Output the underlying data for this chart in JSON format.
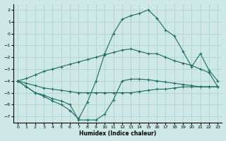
{
  "xlabel": "Humidex (Indice chaleur)",
  "xlim": [
    -0.5,
    23.5
  ],
  "ylim": [
    -7.5,
    2.5
  ],
  "yticks": [
    2,
    1,
    0,
    -1,
    -2,
    -3,
    -4,
    -5,
    -6,
    -7
  ],
  "xticks": [
    0,
    1,
    2,
    3,
    4,
    5,
    6,
    7,
    8,
    9,
    10,
    11,
    12,
    13,
    14,
    15,
    16,
    17,
    18,
    19,
    20,
    21,
    22,
    23
  ],
  "bg_color": "#cde8e5",
  "line_color": "#1e6b63",
  "grid_color": "#aacfcc",
  "line1_x": [
    0,
    1,
    2,
    3,
    4,
    5,
    6,
    7,
    8,
    9,
    10,
    11,
    12,
    13,
    14,
    15,
    16,
    17,
    18,
    19,
    20,
    21,
    22,
    23
  ],
  "line1_y": [
    -4.0,
    -3.8,
    -3.5,
    -3.2,
    -3.0,
    -2.8,
    -2.6,
    -2.4,
    -2.2,
    -2.0,
    -1.8,
    -1.6,
    -1.4,
    -1.3,
    -1.5,
    -1.7,
    -1.7,
    -2.0,
    -2.3,
    -2.5,
    -2.7,
    -3.0,
    -3.3,
    -4.5
  ],
  "line2_x": [
    0,
    1,
    2,
    3,
    4,
    5,
    6,
    7,
    8,
    9,
    10,
    11,
    12,
    13,
    14,
    15,
    16,
    17,
    18,
    19,
    20,
    21,
    22,
    23
  ],
  "line2_y": [
    -4.0,
    -4.2,
    -4.4,
    -4.6,
    -4.7,
    -4.8,
    -4.9,
    -5.0,
    -5.0,
    -5.0,
    -5.0,
    -5.0,
    -5.0,
    -5.0,
    -4.9,
    -4.8,
    -4.7,
    -4.7,
    -4.6,
    -4.5,
    -4.5,
    -4.5,
    -4.5,
    -4.5
  ],
  "line3_x": [
    0,
    1,
    2,
    3,
    4,
    5,
    6,
    7,
    8,
    9,
    10,
    11,
    12,
    13,
    14,
    15,
    16,
    17,
    18,
    19,
    20,
    21,
    22,
    23
  ],
  "line3_y": [
    -4.0,
    -4.5,
    -5.0,
    -5.2,
    -5.5,
    -5.7,
    -6.0,
    -7.3,
    -7.3,
    -7.3,
    -6.8,
    -5.6,
    -4.0,
    -3.85,
    -3.85,
    -3.9,
    -4.0,
    -4.1,
    -4.2,
    -4.3,
    -4.4,
    -4.5,
    -4.5,
    -4.5
  ],
  "line4_x": [
    0,
    1,
    2,
    3,
    4,
    5,
    6,
    7,
    8,
    9,
    10,
    11,
    12,
    13,
    14,
    15,
    16,
    17,
    18,
    19,
    20,
    21,
    22,
    23
  ],
  "line4_y": [
    -4.0,
    -4.5,
    -5.0,
    -5.3,
    -5.7,
    -6.0,
    -6.5,
    -7.2,
    -5.8,
    -4.0,
    -1.7,
    0.0,
    1.2,
    1.5,
    1.7,
    2.0,
    1.3,
    0.3,
    -0.2,
    -1.5,
    -2.8,
    -1.7,
    -3.1,
    -4.0
  ]
}
